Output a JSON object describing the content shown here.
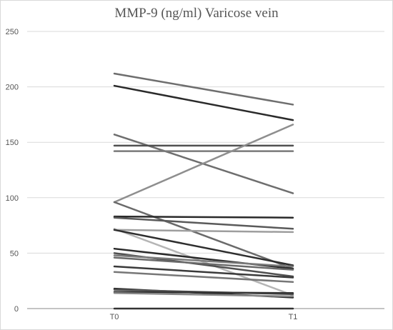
{
  "chart_data": {
    "type": "line",
    "title": "MMP-9 (ng/ml) Varicose vein",
    "categories": [
      "T0",
      "T1"
    ],
    "ylim": [
      0,
      250
    ],
    "yticks": [
      0,
      50,
      100,
      150,
      200,
      250
    ],
    "grid": true,
    "series": [
      {
        "values": [
          212,
          184
        ],
        "color": "#6e6e6e"
      },
      {
        "values": [
          201,
          170
        ],
        "color": "#2a2a2a"
      },
      {
        "values": [
          157,
          104
        ],
        "color": "#6e6e6e"
      },
      {
        "values": [
          147,
          147
        ],
        "color": "#505050"
      },
      {
        "values": [
          142,
          142
        ],
        "color": "#7a7a7a"
      },
      {
        "values": [
          96,
          166
        ],
        "color": "#8e8e8e"
      },
      {
        "values": [
          96,
          36
        ],
        "color": "#6a6a6a"
      },
      {
        "values": [
          83,
          82
        ],
        "color": "#2a2a2a"
      },
      {
        "values": [
          82,
          72
        ],
        "color": "#5a5a5a"
      },
      {
        "values": [
          71,
          69
        ],
        "color": "#9e9e9e"
      },
      {
        "values": [
          72,
          12
        ],
        "color": "#b5b5b5"
      },
      {
        "values": [
          71,
          39
        ],
        "color": "#2e2e2e"
      },
      {
        "values": [
          54,
          36
        ],
        "color": "#2a2a2a"
      },
      {
        "values": [
          50,
          29
        ],
        "color": "#505050"
      },
      {
        "values": [
          48,
          38
        ],
        "color": "#7a7a7a"
      },
      {
        "values": [
          46,
          35
        ],
        "color": "#6a6a6a"
      },
      {
        "values": [
          38,
          28
        ],
        "color": "#3a3a3a"
      },
      {
        "values": [
          33,
          24
        ],
        "color": "#777777"
      },
      {
        "values": [
          18,
          10
        ],
        "color": "#2a2a2a"
      },
      {
        "values": [
          17,
          13
        ],
        "color": "#555555"
      },
      {
        "values": [
          15,
          14
        ],
        "color": "#333333"
      },
      {
        "values": [
          14,
          11
        ],
        "color": "#888888"
      },
      {
        "values": [
          0,
          0
        ],
        "color": "#333333"
      }
    ]
  }
}
